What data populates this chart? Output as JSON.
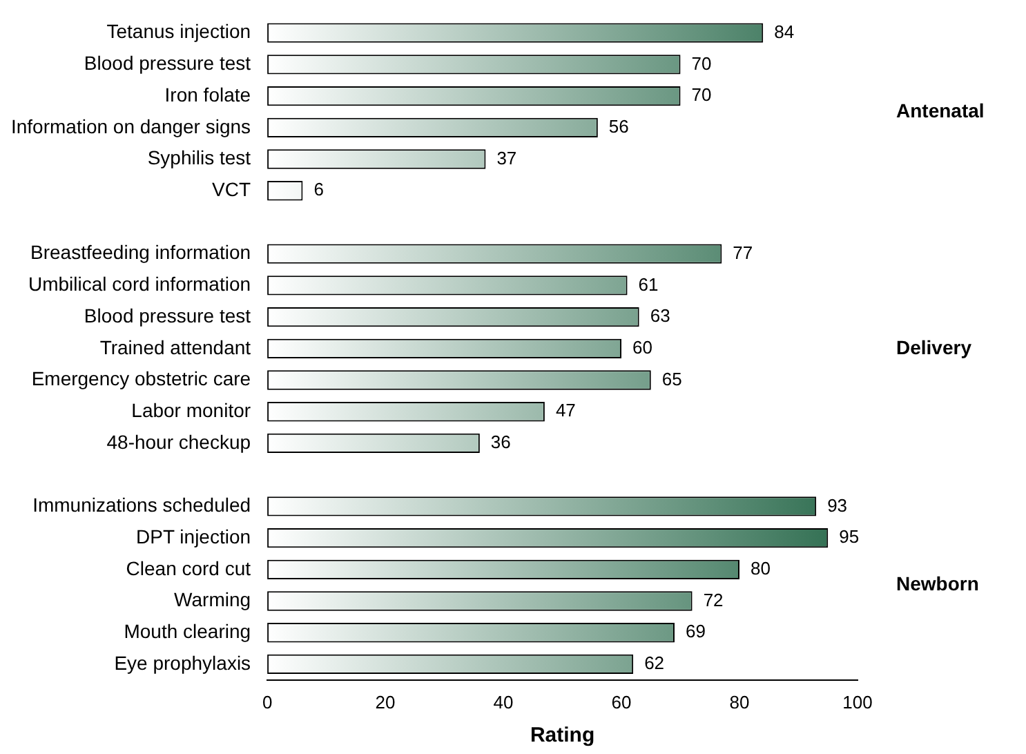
{
  "chart_data": {
    "type": "bar",
    "orientation": "horizontal",
    "xlabel": "Rating",
    "categories": [
      "Tetanus injection",
      "Blood pressure test",
      "Iron folate",
      "Information on danger signs",
      "Syphilis test",
      "VCT",
      null,
      "Breastfeeding information",
      "Umbilical cord information",
      "Blood pressure test",
      "Trained attendant",
      "Emergency obstetric care",
      "Labor monitor",
      "48-hour checkup",
      null,
      "Immunizations scheduled",
      "DPT injection",
      "Clean cord cut",
      "Warming",
      "Mouth clearing",
      "Eye prophylaxis"
    ],
    "values": [
      84,
      70,
      70,
      56,
      37,
      6,
      null,
      77,
      61,
      63,
      60,
      65,
      47,
      36,
      null,
      93,
      95,
      80,
      72,
      69,
      62
    ],
    "color": "#2a6a4c",
    "xlim": [
      0,
      100
    ],
    "xticks": [
      0,
      20,
      40,
      60,
      80,
      100
    ],
    "data_labels": true,
    "grid": false,
    "legend": false,
    "annotations": [
      "Antenatal",
      "Delivery",
      "Newborn"
    ]
  }
}
